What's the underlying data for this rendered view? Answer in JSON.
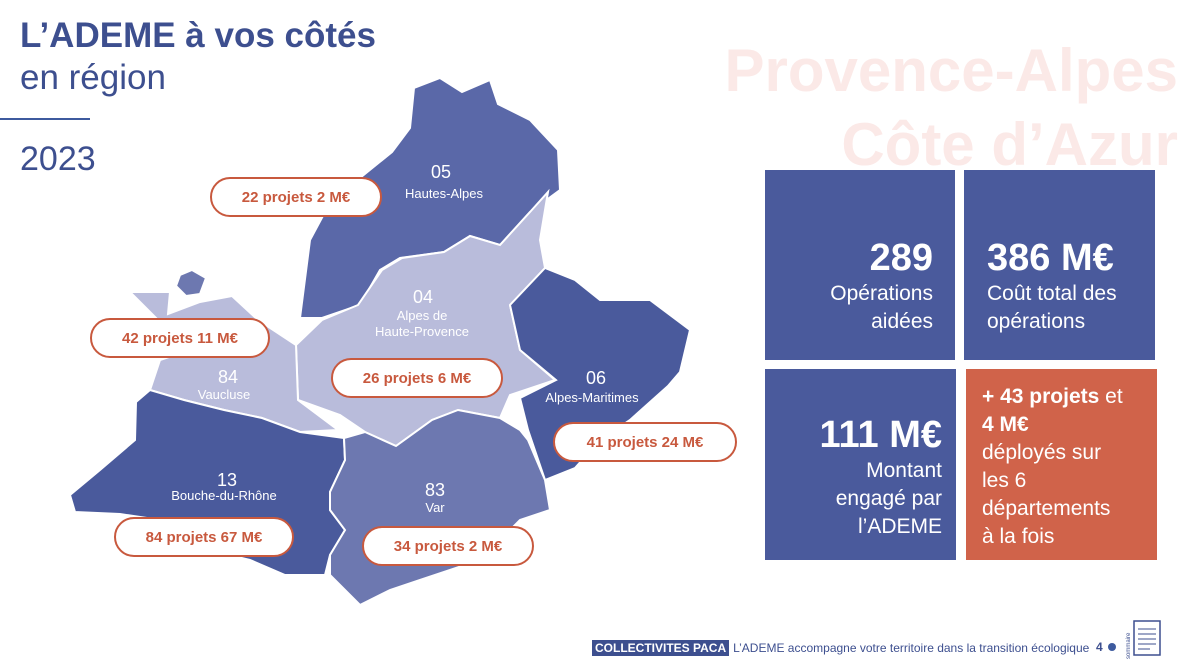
{
  "header": {
    "title": "L’ADEME à vos côtés",
    "subtitle": "en région",
    "year": "2023"
  },
  "region": {
    "line1": "Provence-Alpes",
    "line2": "Côte d’Azur"
  },
  "departments": [
    {
      "number": "05",
      "name": "Hautes-Alpes",
      "badge": "22 projets 2 M€"
    },
    {
      "number": "04",
      "name_line1": "Alpes de",
      "name_line2": "Haute-Provence",
      "badge": "26 projets 6 M€"
    },
    {
      "number": "84",
      "name": "Vaucluse",
      "badge": "42 projets 11 M€"
    },
    {
      "number": "06",
      "name": "Alpes-Maritimes",
      "badge": "41 projets 24 M€"
    },
    {
      "number": "13",
      "name": "Bouche-du-Rhône",
      "badge": "84 projets 67 M€"
    },
    {
      "number": "83",
      "name": "Var",
      "badge": "34 projets 2 M€"
    }
  ],
  "stats": {
    "operations": {
      "value": "289",
      "label_line1": "Opérations",
      "label_line2": "aidées"
    },
    "cost": {
      "value": "386 M€",
      "label_line1": "Coût total des",
      "label_line2": "opérations"
    },
    "engaged": {
      "value": "111 M€",
      "label_line1": "Montant",
      "label_line2": "engagé par",
      "label_line3": "l’ADEME"
    },
    "extra": {
      "bold1": "+ 43 projets",
      "text1": " et",
      "bold2": "4 M€",
      "line2": "déployés sur",
      "line3": "les 6",
      "line4": "départements",
      "line5": "à la fois"
    }
  },
  "footer": {
    "tag": "COLLECTIVITES PACA",
    "text": "L’ADEME accompagne votre territoire dans la transition écologique",
    "page": "4",
    "summary_label": "sommaire"
  },
  "colors": {
    "dark_blue": "#4a5a9c",
    "mid_blue": "#6d78b0",
    "light_lavender": "#b9bcdb",
    "accent_orange": "#d0634a",
    "title_blue": "#3d4f8f"
  }
}
